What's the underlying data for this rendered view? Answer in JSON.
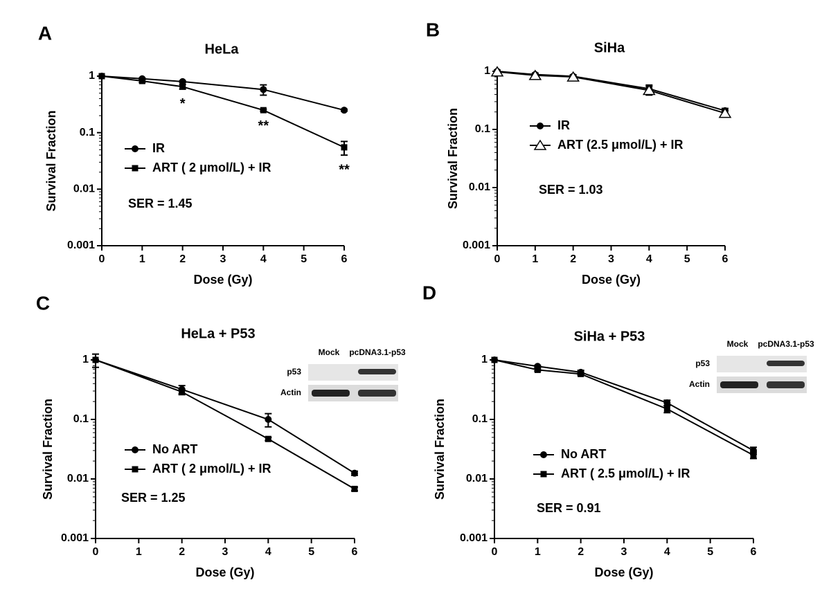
{
  "chart_data": [
    {
      "type": "line",
      "panel": "A",
      "title": "HeLa",
      "xlabel": "Dose (Gy)",
      "ylabel": "Survival Fraction",
      "log_y": true,
      "xlim": [
        0,
        6
      ],
      "xticks": [
        0,
        1,
        2,
        3,
        4,
        5,
        6
      ],
      "ylim": [
        0.001,
        1
      ],
      "yticks": [
        0.001,
        0.01,
        0.1,
        1
      ],
      "series": [
        {
          "name": "IR",
          "color": "#000000",
          "marker": "circle",
          "x": [
            0,
            1,
            2,
            4,
            6
          ],
          "values": [
            1,
            0.9,
            0.8,
            0.58,
            0.25
          ],
          "errors": [
            0,
            0.03,
            0.03,
            0.12,
            0.01
          ]
        },
        {
          "name": "ART ( 2 μmol/L) + IR",
          "color": "#000000",
          "marker": "square",
          "x": [
            0,
            1,
            2,
            4,
            6
          ],
          "values": [
            1,
            0.82,
            0.65,
            0.25,
            0.055
          ],
          "errors": [
            0,
            0.05,
            0.06,
            0.01,
            0.015
          ]
        }
      ],
      "annotations": [
        {
          "text": "*",
          "x": 2
        },
        {
          "text": "**",
          "x": 4
        },
        {
          "text": "**",
          "x": 6
        }
      ],
      "note": "SER = 1.45"
    },
    {
      "type": "line",
      "panel": "B",
      "title": "SiHa",
      "xlabel": "Dose (Gy)",
      "ylabel": "Survival Fraction",
      "log_y": true,
      "xlim": [
        0,
        6
      ],
      "xticks": [
        0,
        1,
        2,
        3,
        4,
        5,
        6
      ],
      "ylim": [
        0.001,
        1
      ],
      "yticks": [
        0.001,
        0.01,
        0.1,
        1
      ],
      "series": [
        {
          "name": "IR",
          "color": "#000000",
          "marker": "circle",
          "x": [
            0,
            1,
            2,
            4,
            6
          ],
          "values": [
            1,
            0.88,
            0.82,
            0.5,
            0.21
          ],
          "errors": [
            0.05,
            0.05,
            0.05,
            0.08,
            0.02
          ]
        },
        {
          "name": "ART (2.5 μmol/L) + IR",
          "color": "#000000",
          "marker": "triangle",
          "x": [
            0,
            1,
            2,
            4,
            6
          ],
          "values": [
            0.98,
            0.85,
            0.8,
            0.47,
            0.19
          ],
          "errors": [
            0.05,
            0.05,
            0.05,
            0.08,
            0.02
          ]
        }
      ],
      "note": "SER = 1.03"
    },
    {
      "type": "line",
      "panel": "C",
      "title": "HeLa  + P53",
      "xlabel": "Dose (Gy)",
      "ylabel": "Survival Fraction",
      "log_y": true,
      "xlim": [
        0,
        6
      ],
      "xticks": [
        0,
        1,
        2,
        3,
        4,
        5,
        6
      ],
      "ylim": [
        0.001,
        1
      ],
      "yticks": [
        0.001,
        0.01,
        0.1,
        1
      ],
      "series": [
        {
          "name": "No ART",
          "color": "#000000",
          "marker": "circle",
          "x": [
            0,
            2,
            4,
            6
          ],
          "values": [
            1,
            0.32,
            0.1,
            0.0125
          ],
          "errors": [
            0.25,
            0.05,
            0.025,
            0.001
          ]
        },
        {
          "name": "ART ( 2 μmol/L) + IR",
          "color": "#000000",
          "marker": "square",
          "x": [
            0,
            2,
            4,
            6
          ],
          "values": [
            1,
            0.29,
            0.047,
            0.0068
          ],
          "errors": [
            0,
            0.03,
            0.003,
            0.0005
          ]
        }
      ],
      "note": "SER = 1.25",
      "blot": {
        "columns": [
          "Mock",
          "pcDNA3.1-p53"
        ],
        "rows": [
          "p53",
          "Actin"
        ]
      }
    },
    {
      "type": "line",
      "panel": "D",
      "title": "SiHa  + P53",
      "xlabel": "Dose (Gy)",
      "ylabel": "Survival Fraction",
      "log_y": true,
      "xlim": [
        0,
        6
      ],
      "xticks": [
        0,
        1,
        2,
        3,
        4,
        5,
        6
      ],
      "ylim": [
        0.001,
        1
      ],
      "yticks": [
        0.001,
        0.01,
        0.1,
        1
      ],
      "series": [
        {
          "name": "No ART",
          "color": "#000000",
          "marker": "circle",
          "x": [
            0,
            1,
            2,
            4,
            6
          ],
          "values": [
            1,
            0.78,
            0.62,
            0.19,
            0.03
          ],
          "errors": [
            0,
            0.03,
            0.05,
            0.02,
            0.004
          ]
        },
        {
          "name": "ART ( 2.5 μmol/L) + IR",
          "color": "#000000",
          "marker": "square",
          "x": [
            0,
            1,
            2,
            4,
            6
          ],
          "values": [
            1,
            0.68,
            0.58,
            0.15,
            0.025
          ],
          "errors": [
            0,
            0.03,
            0.03,
            0.02,
            0.003
          ]
        }
      ],
      "note": "SER = 0.91",
      "blot": {
        "columns": [
          "Mock",
          "pcDNA3.1-p53"
        ],
        "rows": [
          "p53",
          "Actin"
        ]
      }
    }
  ]
}
